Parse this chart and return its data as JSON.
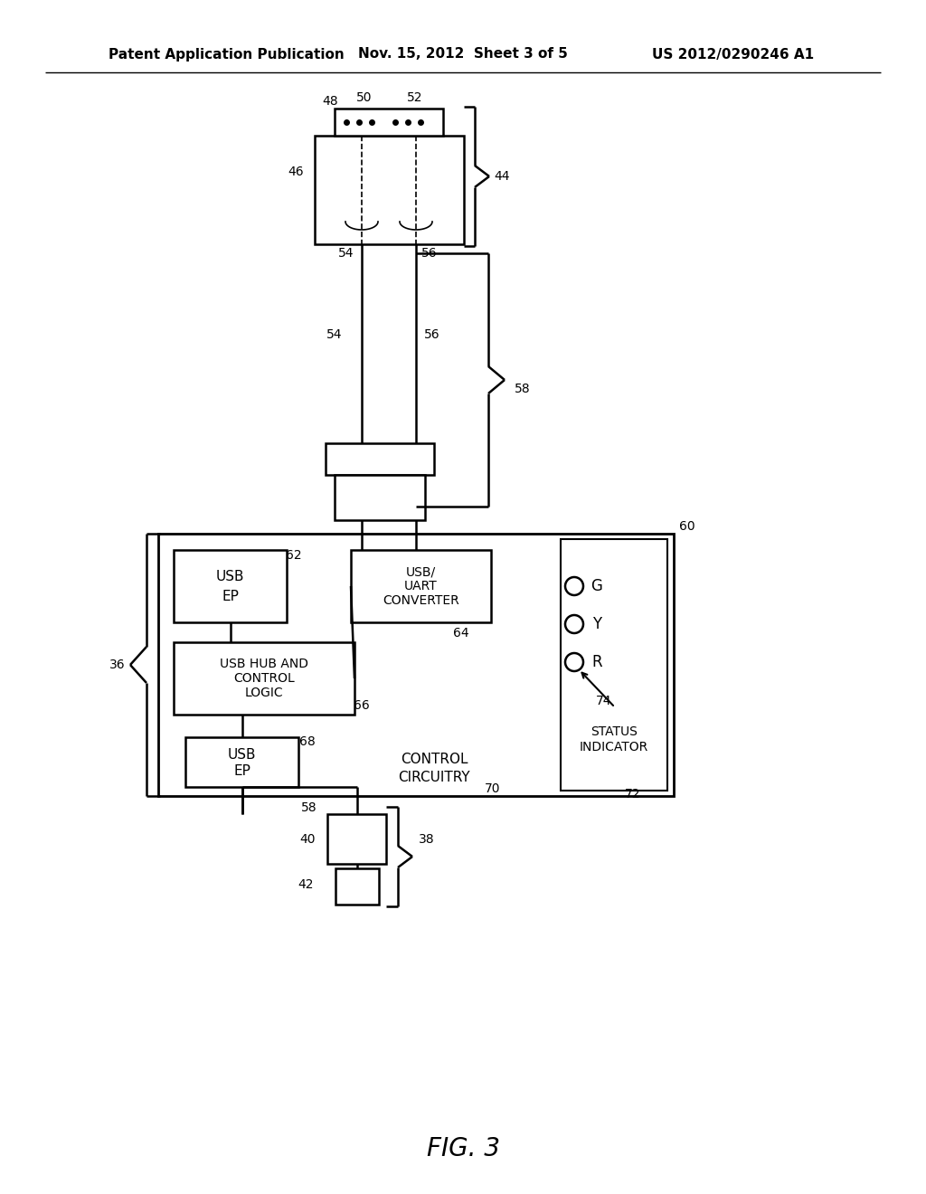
{
  "bg_color": "#ffffff",
  "line_color": "#000000",
  "header_left": "Patent Application Publication",
  "header_center": "Nov. 15, 2012  Sheet 3 of 5",
  "header_right": "US 2012/0290246 A1",
  "figure_label": "FIG. 3",
  "lw": 1.8
}
